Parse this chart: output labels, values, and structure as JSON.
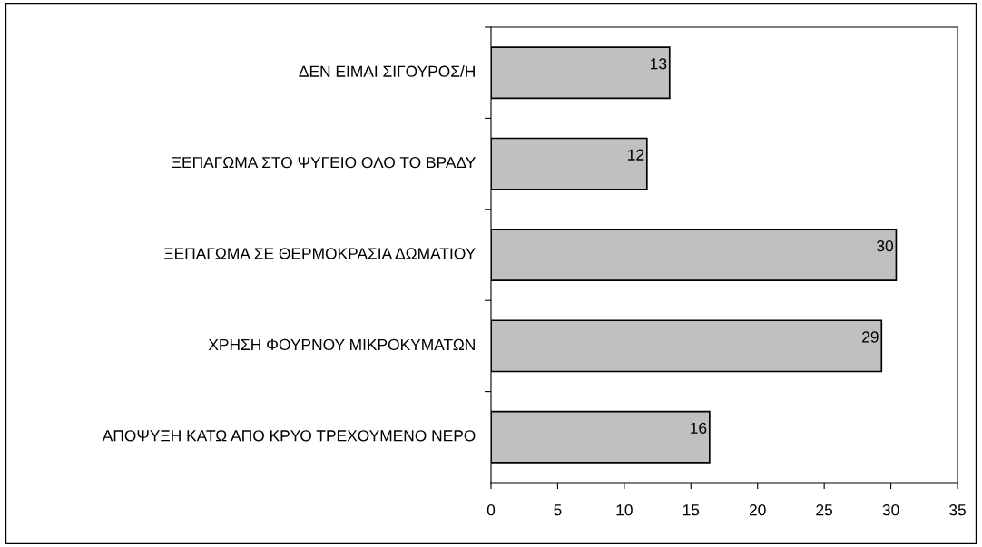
{
  "chart_data": {
    "type": "bar",
    "orientation": "horizontal",
    "categories": [
      "ΔΕΝ ΕΙΜΑΙ ΣΙΓΟΥΡΟΣ/Η",
      "ΞΕΠΑΓΩΜΑ ΣΤΟ ΨΥΓΕΙΟ ΟΛΟ ΤΟ ΒΡΑΔΥ",
      "ΞΕΠΑΓΩΜΑ ΣΕ ΘΕΡΜΟΚΡΑΣΙΑ ΔΩΜΑΤΙΟΥ",
      "ΧΡΗΣΗ ΦΟΥΡΝΟΥ ΜΙΚΡΟΚΥΜΑΤΩΝ",
      "ΑΠΟΨΥΞΗ ΚΑΤΩ ΑΠΟ ΚΡΥΟ ΤΡΕΧΟΥΜΕΝΟ ΝΕΡΟ"
    ],
    "values": [
      13.4,
      11.7,
      30.4,
      29.3,
      16.4
    ],
    "value_labels": [
      "13",
      "12",
      "30",
      "29",
      "16"
    ],
    "color": "#c0c0c0",
    "xlim": [
      0,
      35
    ],
    "xticks": [
      0,
      5,
      10,
      15,
      20,
      25,
      30,
      35
    ],
    "grid": false,
    "legend": false
  }
}
